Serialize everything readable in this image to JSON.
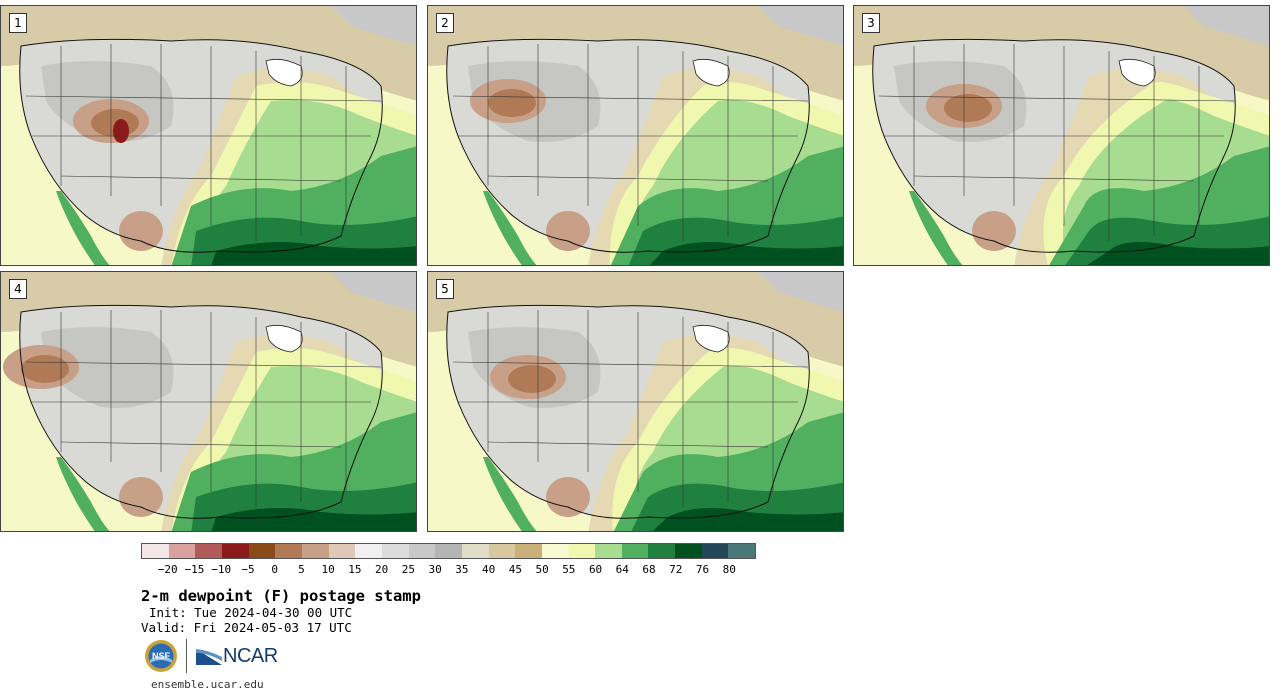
{
  "panels": [
    {
      "label": "1",
      "variant": 0
    },
    {
      "label": "2",
      "variant": 1
    },
    {
      "label": "3",
      "variant": 2
    },
    {
      "label": "4",
      "variant": 3
    },
    {
      "label": "5",
      "variant": 4
    }
  ],
  "colorbar": {
    "ticks": [
      "-20",
      "-15",
      "-10",
      "-5",
      "0",
      "5",
      "10",
      "15",
      "20",
      "25",
      "30",
      "35",
      "40",
      "45",
      "50",
      "55",
      "60",
      "64",
      "68",
      "72",
      "76",
      "80"
    ],
    "colors": [
      "#f3e6e6",
      "#d9a0a0",
      "#b05a5a",
      "#8c1a1a",
      "#8a4a18",
      "#b07a56",
      "#c8a088",
      "#e0c8b8",
      "#f0f0f0",
      "#dcdcdc",
      "#c8c8c8",
      "#b4b4b4",
      "#e0dcc8",
      "#d8c8a0",
      "#c8b078",
      "#fafad0",
      "#f0f8b0",
      "#a8dc90",
      "#50b060",
      "#208040",
      "#005020",
      "#204858",
      "#4a7878"
    ]
  },
  "title": "2-m dewpoint (F) postage stamp",
  "init": "Init: Tue 2024-04-30 00 UTC",
  "valid": "Valid: Fri 2024-05-03 17 UTC",
  "logos": {
    "nsf": "NSF",
    "ncar": "NCAR"
  },
  "site": "ensemble.ucar.edu"
}
